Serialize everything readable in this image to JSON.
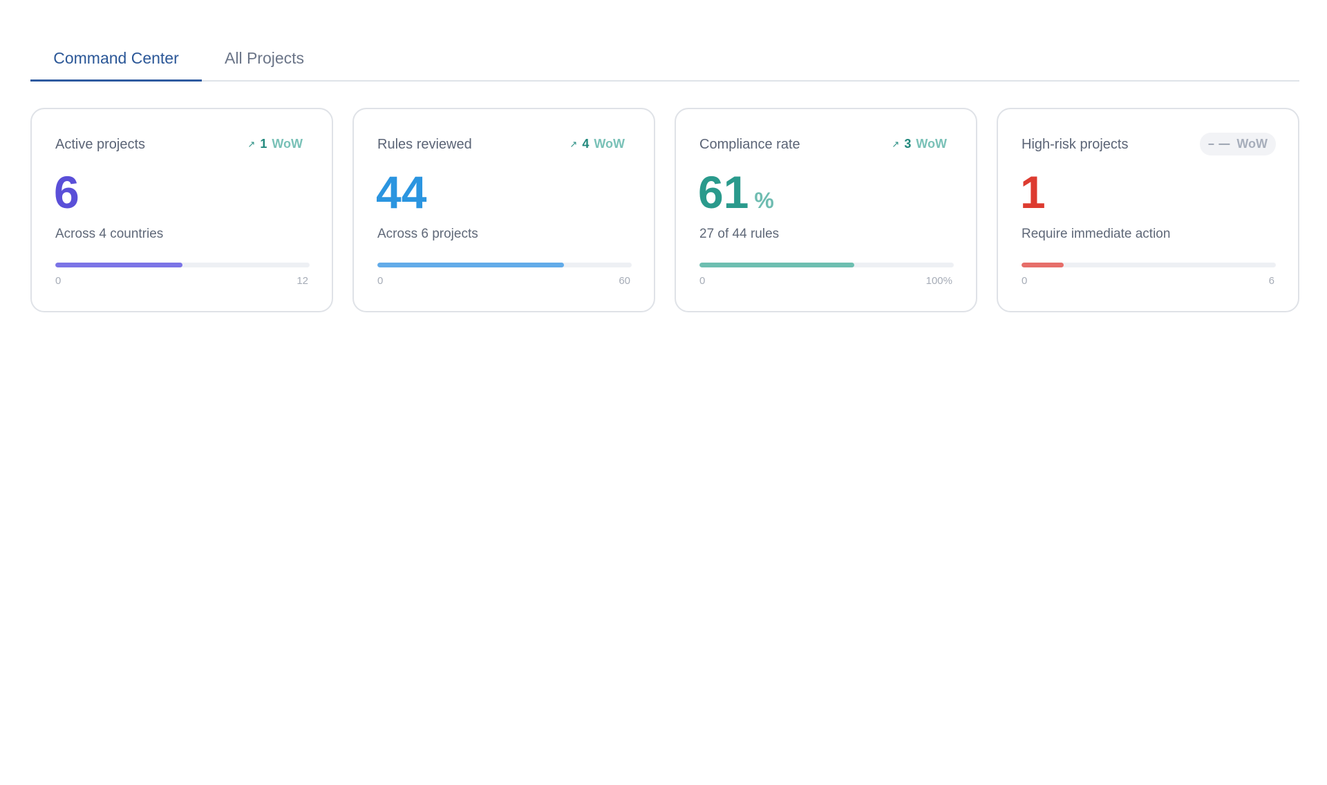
{
  "tabs": [
    {
      "label": "Command Center",
      "active": true
    },
    {
      "label": "All Projects",
      "active": false
    }
  ],
  "cards": [
    {
      "title": "Active projects",
      "wow": {
        "arrow": "↗",
        "delta": "1",
        "label": "WoW"
      },
      "value": "6",
      "subtitle": "Across 4 countries",
      "bar": {
        "min_label": "0",
        "max_label": "12",
        "fill_fraction": 0.5,
        "color": "#7b74e6"
      },
      "value_color": "#5a4fd8"
    },
    {
      "title": "Rules reviewed",
      "wow": {
        "arrow": "↗",
        "delta": "4",
        "label": "WoW"
      },
      "value": "44",
      "subtitle": "Across 6 projects",
      "bar": {
        "min_label": "0",
        "max_label": "60",
        "fill_fraction": 0.733,
        "color": "#62abe9"
      },
      "value_color": "#2b95e0"
    },
    {
      "title": "Compliance rate",
      "wow": {
        "arrow": "↗",
        "delta": "3",
        "label": "WoW"
      },
      "value": "61",
      "unit": "%",
      "subtitle": "27 of 44 rules",
      "bar": {
        "min_label": "0",
        "max_label": "100%",
        "fill_fraction": 0.61,
        "color": "#6dbfb0"
      },
      "value_color": "#2a9a8c"
    },
    {
      "title": "High-risk projects",
      "wow": {
        "dashes": "– —",
        "label": "WoW"
      },
      "value": "1",
      "subtitle": "Require immediate action",
      "bar": {
        "min_label": "0",
        "max_label": "6",
        "fill_fraction": 0.167,
        "color": "#e66e6a"
      },
      "value_color": "#dd3b30"
    }
  ]
}
